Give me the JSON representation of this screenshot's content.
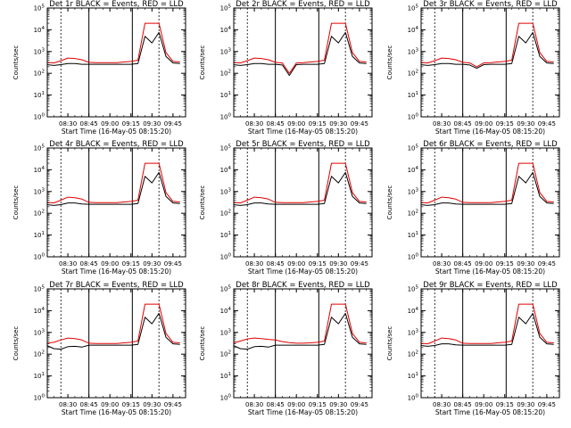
{
  "page": {
    "background": "#ffffff",
    "colors": {
      "events": "#000000",
      "lld": "#e00000",
      "frame": "#000000"
    }
  },
  "chart_data": [
    {
      "type": "line",
      "title": "Det 1r BLACK = Events, RED = LLD",
      "xlabel": "Start Time (16-May-05 08:15:20)",
      "ylabel": "Counts/sec",
      "x_ticks": [
        "08:30",
        "08:45",
        "09:00",
        "09:15",
        "09:30",
        "09:45"
      ],
      "y_ticks": [
        "10^0",
        "10^1",
        "10^2",
        "10^3",
        "10^4",
        "10^5"
      ],
      "ylim": [
        1,
        100000
      ],
      "y_scale": "log",
      "x": [
        "08:15",
        "08:20",
        "08:25",
        "08:30",
        "08:35",
        "08:40",
        "08:45",
        "08:50",
        "08:55",
        "09:00",
        "09:05",
        "09:10",
        "09:15",
        "09:20",
        "09:25",
        "09:30",
        "09:35",
        "09:40",
        "09:45",
        "09:50"
      ],
      "series": [
        {
          "name": "Events",
          "color": "#000000",
          "values": [
            250,
            230,
            250,
            280,
            280,
            260,
            260,
            260,
            260,
            260,
            260,
            260,
            260,
            280,
            5000,
            2500,
            7500,
            600,
            300,
            280
          ]
        },
        {
          "name": "LLD",
          "color": "#e00000",
          "values": [
            320,
            300,
            380,
            500,
            480,
            420,
            320,
            310,
            310,
            310,
            310,
            330,
            350,
            400,
            20000,
            20000,
            20000,
            900,
            350,
            330
          ]
        }
      ]
    },
    {
      "type": "line",
      "title": "Det 2r BLACK = Events, RED = LLD",
      "xlabel": "Start Time (16-May-05 08:15:20)",
      "ylabel": "Counts/sec",
      "x_ticks": [
        "08:30",
        "08:45",
        "09:00",
        "09:15",
        "09:30",
        "09:45"
      ],
      "y_ticks": [
        "10^0",
        "10^1",
        "10^2",
        "10^3",
        "10^4",
        "10^5"
      ],
      "ylim": [
        1,
        100000
      ],
      "y_scale": "log",
      "x": [
        "08:15",
        "08:20",
        "08:25",
        "08:30",
        "08:35",
        "08:40",
        "08:45",
        "08:50",
        "08:55",
        "09:00",
        "09:05",
        "09:10",
        "09:15",
        "09:20",
        "09:25",
        "09:30",
        "09:35",
        "09:40",
        "09:45",
        "09:50"
      ],
      "series": [
        {
          "name": "Events",
          "color": "#000000",
          "values": [
            250,
            230,
            250,
            280,
            280,
            260,
            260,
            240,
            80,
            250,
            260,
            260,
            260,
            280,
            5000,
            2500,
            7500,
            600,
            300,
            280
          ]
        },
        {
          "name": "LLD",
          "color": "#e00000",
          "values": [
            320,
            300,
            380,
            500,
            480,
            420,
            320,
            300,
            100,
            300,
            310,
            330,
            350,
            400,
            20000,
            20000,
            20000,
            900,
            350,
            330
          ]
        }
      ]
    },
    {
      "type": "line",
      "title": "Det 3r BLACK = Events, RED = LLD",
      "xlabel": "Start Time (16-May-05 08:15:20)",
      "ylabel": "Counts/sec",
      "x_ticks": [
        "08:30",
        "08:45",
        "09:00",
        "09:15",
        "09:30",
        "09:45"
      ],
      "y_ticks": [
        "10^0",
        "10^1",
        "10^2",
        "10^3",
        "10^4",
        "10^5"
      ],
      "ylim": [
        1,
        100000
      ],
      "y_scale": "log",
      "x": [
        "08:15",
        "08:20",
        "08:25",
        "08:30",
        "08:35",
        "08:40",
        "08:45",
        "08:50",
        "08:55",
        "09:00",
        "09:05",
        "09:10",
        "09:15",
        "09:20",
        "09:25",
        "09:30",
        "09:35",
        "09:40",
        "09:45",
        "09:50"
      ],
      "series": [
        {
          "name": "Events",
          "color": "#000000",
          "values": [
            250,
            230,
            250,
            280,
            280,
            260,
            260,
            240,
            170,
            250,
            260,
            260,
            260,
            280,
            5000,
            2500,
            7500,
            600,
            300,
            280
          ]
        },
        {
          "name": "LLD",
          "color": "#e00000",
          "values": [
            320,
            300,
            380,
            500,
            480,
            420,
            320,
            300,
            200,
            300,
            310,
            330,
            350,
            400,
            20000,
            20000,
            20000,
            900,
            350,
            330
          ]
        }
      ]
    },
    {
      "type": "line",
      "title": "Det 4r BLACK = Events, RED = LLD",
      "xlabel": "Start Time (16-May-05 08:15:20)",
      "ylabel": "Counts/sec",
      "x_ticks": [
        "08:30",
        "08:45",
        "09:00",
        "09:15",
        "09:30",
        "09:45"
      ],
      "y_ticks": [
        "10^0",
        "10^1",
        "10^2",
        "10^3",
        "10^4",
        "10^5"
      ],
      "ylim": [
        1,
        100000
      ],
      "y_scale": "log",
      "x": [
        "08:15",
        "08:20",
        "08:25",
        "08:30",
        "08:35",
        "08:40",
        "08:45",
        "08:50",
        "08:55",
        "09:00",
        "09:05",
        "09:10",
        "09:15",
        "09:20",
        "09:25",
        "09:30",
        "09:35",
        "09:40",
        "09:45",
        "09:50"
      ],
      "series": [
        {
          "name": "Events",
          "color": "#000000",
          "values": [
            250,
            230,
            250,
            300,
            300,
            270,
            260,
            260,
            260,
            260,
            260,
            260,
            260,
            280,
            5000,
            2500,
            7500,
            600,
            300,
            280
          ]
        },
        {
          "name": "LLD",
          "color": "#e00000",
          "values": [
            320,
            300,
            400,
            550,
            520,
            450,
            320,
            310,
            310,
            310,
            310,
            330,
            350,
            400,
            20000,
            20000,
            20000,
            900,
            350,
            330
          ]
        }
      ]
    },
    {
      "type": "line",
      "title": "Det 5r BLACK = Events, RED = LLD",
      "xlabel": "Start Time (16-May-05 08:15:20)",
      "ylabel": "Counts/sec",
      "x_ticks": [
        "08:30",
        "08:45",
        "09:00",
        "09:15",
        "09:30",
        "09:45"
      ],
      "y_ticks": [
        "10^0",
        "10^1",
        "10^2",
        "10^3",
        "10^4",
        "10^5"
      ],
      "ylim": [
        1,
        100000
      ],
      "y_scale": "log",
      "x": [
        "08:15",
        "08:20",
        "08:25",
        "08:30",
        "08:35",
        "08:40",
        "08:45",
        "08:50",
        "08:55",
        "09:00",
        "09:05",
        "09:10",
        "09:15",
        "09:20",
        "09:25",
        "09:30",
        "09:35",
        "09:40",
        "09:45",
        "09:50"
      ],
      "series": [
        {
          "name": "Events",
          "color": "#000000",
          "values": [
            250,
            230,
            250,
            300,
            300,
            270,
            260,
            260,
            260,
            260,
            260,
            260,
            260,
            280,
            5000,
            2500,
            7500,
            600,
            300,
            280
          ]
        },
        {
          "name": "LLD",
          "color": "#e00000",
          "values": [
            320,
            300,
            400,
            550,
            520,
            450,
            320,
            310,
            310,
            310,
            310,
            330,
            350,
            400,
            20000,
            20000,
            20000,
            900,
            350,
            330
          ]
        }
      ]
    },
    {
      "type": "line",
      "title": "Det 6r BLACK = Events, RED = LLD",
      "xlabel": "Start Time (16-May-05 08:15:20)",
      "ylabel": "Counts/sec",
      "x_ticks": [
        "08:30",
        "08:45",
        "09:00",
        "09:15",
        "09:30",
        "09:45"
      ],
      "y_ticks": [
        "10^0",
        "10^1",
        "10^2",
        "10^3",
        "10^4",
        "10^5"
      ],
      "ylim": [
        1,
        100000
      ],
      "y_scale": "log",
      "x": [
        "08:15",
        "08:20",
        "08:25",
        "08:30",
        "08:35",
        "08:40",
        "08:45",
        "08:50",
        "08:55",
        "09:00",
        "09:05",
        "09:10",
        "09:15",
        "09:20",
        "09:25",
        "09:30",
        "09:35",
        "09:40",
        "09:45",
        "09:50"
      ],
      "series": [
        {
          "name": "Events",
          "color": "#000000",
          "values": [
            250,
            230,
            250,
            300,
            300,
            270,
            260,
            260,
            260,
            260,
            260,
            260,
            260,
            280,
            5000,
            2500,
            7500,
            600,
            300,
            280
          ]
        },
        {
          "name": "LLD",
          "color": "#e00000",
          "values": [
            320,
            300,
            400,
            550,
            520,
            450,
            320,
            310,
            310,
            310,
            310,
            330,
            350,
            400,
            20000,
            20000,
            20000,
            900,
            350,
            330
          ]
        }
      ]
    },
    {
      "type": "line",
      "title": "Det 7r BLACK = Events, RED = LLD",
      "xlabel": "Start Time (16-May-05 08:15:20)",
      "ylabel": "Counts/sec",
      "x_ticks": [
        "08:30",
        "08:45",
        "09:00",
        "09:15",
        "09:30",
        "09:45"
      ],
      "y_ticks": [
        "10^0",
        "10^1",
        "10^2",
        "10^3",
        "10^4",
        "10^5"
      ],
      "ylim": [
        1,
        100000
      ],
      "y_scale": "log",
      "x": [
        "08:15",
        "08:20",
        "08:25",
        "08:30",
        "08:35",
        "08:40",
        "08:45",
        "08:50",
        "08:55",
        "09:00",
        "09:05",
        "09:10",
        "09:15",
        "09:20",
        "09:25",
        "09:30",
        "09:35",
        "09:40",
        "09:45",
        "09:50"
      ],
      "series": [
        {
          "name": "Events",
          "color": "#000000",
          "values": [
            250,
            180,
            170,
            220,
            230,
            210,
            260,
            260,
            260,
            260,
            260,
            260,
            260,
            280,
            5000,
            2500,
            7500,
            600,
            300,
            280
          ]
        },
        {
          "name": "LLD",
          "color": "#e00000",
          "values": [
            320,
            350,
            450,
            550,
            520,
            450,
            320,
            310,
            310,
            310,
            310,
            330,
            350,
            400,
            20000,
            20000,
            20000,
            900,
            350,
            330
          ]
        }
      ]
    },
    {
      "type": "line",
      "title": "Det 8r BLACK = Events, RED = LLD",
      "xlabel": "Start Time (16-May-05 08:15:20)",
      "ylabel": "Counts/sec",
      "x_ticks": [
        "08:30",
        "08:45",
        "09:00",
        "09:15",
        "09:30",
        "09:45"
      ],
      "y_ticks": [
        "10^0",
        "10^1",
        "10^2",
        "10^3",
        "10^4",
        "10^5"
      ],
      "ylim": [
        1,
        100000
      ],
      "y_scale": "log",
      "x": [
        "08:15",
        "08:20",
        "08:25",
        "08:30",
        "08:35",
        "08:40",
        "08:45",
        "08:50",
        "08:55",
        "09:00",
        "09:05",
        "09:10",
        "09:15",
        "09:20",
        "09:25",
        "09:30",
        "09:35",
        "09:40",
        "09:45",
        "09:50"
      ],
      "series": [
        {
          "name": "Events",
          "color": "#000000",
          "values": [
            250,
            180,
            170,
            220,
            230,
            210,
            260,
            260,
            260,
            260,
            260,
            260,
            260,
            280,
            5000,
            2500,
            7500,
            600,
            300,
            280
          ]
        },
        {
          "name": "LLD",
          "color": "#e00000",
          "values": [
            320,
            400,
            500,
            550,
            520,
            480,
            450,
            380,
            340,
            320,
            320,
            330,
            350,
            400,
            20000,
            20000,
            20000,
            900,
            350,
            330
          ]
        }
      ]
    },
    {
      "type": "line",
      "title": "Det 9r BLACK = Events, RED = LLD",
      "xlabel": "Start Time (16-May-05 08:15:20)",
      "ylabel": "Counts/sec",
      "x_ticks": [
        "08:30",
        "08:45",
        "09:00",
        "09:15",
        "09:30",
        "09:45"
      ],
      "y_ticks": [
        "10^0",
        "10^1",
        "10^2",
        "10^3",
        "10^4",
        "10^5"
      ],
      "ylim": [
        1,
        100000
      ],
      "y_scale": "log",
      "x": [
        "08:15",
        "08:20",
        "08:25",
        "08:30",
        "08:35",
        "08:40",
        "08:45",
        "08:50",
        "08:55",
        "09:00",
        "09:05",
        "09:10",
        "09:15",
        "09:20",
        "09:25",
        "09:30",
        "09:35",
        "09:40",
        "09:45",
        "09:50"
      ],
      "series": [
        {
          "name": "Events",
          "color": "#000000",
          "values": [
            250,
            230,
            250,
            300,
            300,
            270,
            260,
            260,
            260,
            260,
            260,
            260,
            260,
            280,
            5000,
            2500,
            7500,
            600,
            300,
            280
          ]
        },
        {
          "name": "LLD",
          "color": "#e00000",
          "values": [
            320,
            300,
            400,
            550,
            520,
            450,
            320,
            310,
            310,
            310,
            310,
            330,
            350,
            400,
            20000,
            20000,
            20000,
            900,
            350,
            330
          ]
        }
      ]
    }
  ]
}
